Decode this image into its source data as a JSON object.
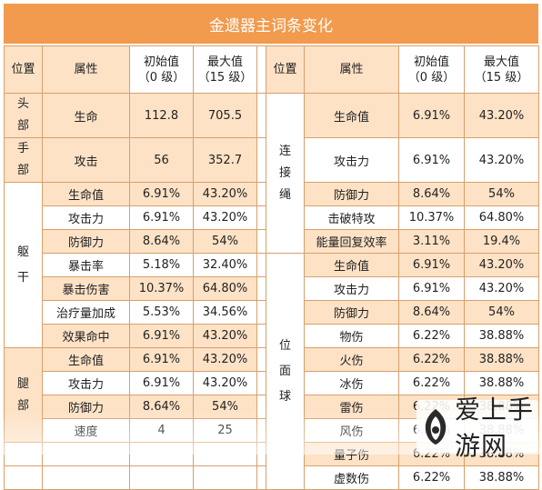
{
  "title": "金遗器主词条变化",
  "headers": {
    "position": "位置",
    "attribute": "属性",
    "initial": "初始值\n（0 级）",
    "max": "最大值\n（15 级）"
  },
  "left": {
    "head": {
      "label": "头部",
      "rows": [
        {
          "attr": "生命",
          "initial": "112.8",
          "max": "705.5"
        }
      ]
    },
    "hand": {
      "label": "手部",
      "rows": [
        {
          "attr": "攻击",
          "initial": "56",
          "max": "352.7"
        }
      ]
    },
    "torso": {
      "label": "躯干",
      "rows": [
        {
          "attr": "生命值",
          "initial": "6.91%",
          "max": "43.20%"
        },
        {
          "attr": "攻击力",
          "initial": "6.91%",
          "max": "43.20%"
        },
        {
          "attr": "防御力",
          "initial": "8.64%",
          "max": "54%"
        },
        {
          "attr": "暴击率",
          "initial": "5.18%",
          "max": "32.40%"
        },
        {
          "attr": "暴击伤害",
          "initial": "10.37%",
          "max": "64.80%"
        },
        {
          "attr": "治疗量加成",
          "initial": "5.53%",
          "max": "34.56%"
        },
        {
          "attr": "效果命中",
          "initial": "6.91%",
          "max": "43.20%"
        }
      ]
    },
    "legs": {
      "label": "腿部",
      "rows": [
        {
          "attr": "生命值",
          "initial": "6.91%",
          "max": "43.20%"
        },
        {
          "attr": "攻击力",
          "initial": "6.91%",
          "max": "43.20%"
        },
        {
          "attr": "防御力",
          "initial": "8.64%",
          "max": "54%"
        },
        {
          "attr": "速度",
          "initial": "4",
          "max": "25"
        }
      ]
    }
  },
  "right": {
    "rope": {
      "label": "连接绳",
      "rows": [
        {
          "attr": "生命值",
          "initial": "6.91%",
          "max": "43.20%"
        },
        {
          "attr": "攻击力",
          "initial": "6.91%",
          "max": "43.20%"
        },
        {
          "attr": "防御力",
          "initial": "8.64%",
          "max": "54%"
        },
        {
          "attr": "击破特攻",
          "initial": "10.37%",
          "max": "64.80%"
        },
        {
          "attr": "能量回复效率",
          "initial": "3.11%",
          "max": "19.4%"
        }
      ]
    },
    "sphere": {
      "label": "位面球",
      "rows": [
        {
          "attr": "生命值",
          "initial": "6.91%",
          "max": "43.20%"
        },
        {
          "attr": "攻击力",
          "initial": "6.91%",
          "max": "43.20%"
        },
        {
          "attr": "防御力",
          "initial": "8.64%",
          "max": "54%"
        },
        {
          "attr": "物伤",
          "initial": "6.22%",
          "max": "38.88%"
        },
        {
          "attr": "火伤",
          "initial": "6.22%",
          "max": "38.88%"
        },
        {
          "attr": "冰伤",
          "initial": "6.22%",
          "max": "38.88%"
        },
        {
          "attr": "雷伤",
          "initial": "6.22%",
          "max": "38.88%"
        },
        {
          "attr": "风伤",
          "initial": "6.22%",
          "max": "38.88%"
        },
        {
          "attr": "量子伤",
          "initial": "6.22%",
          "max": "38.88%"
        },
        {
          "attr": "虚数伤",
          "initial": "6.22%",
          "max": "38.88%"
        }
      ]
    }
  },
  "watermark": {
    "text": "爱上手游网"
  },
  "colors": {
    "header_orange": "#f29a4d",
    "row_peach": "#fde2c6",
    "border": "#d8a06a"
  }
}
